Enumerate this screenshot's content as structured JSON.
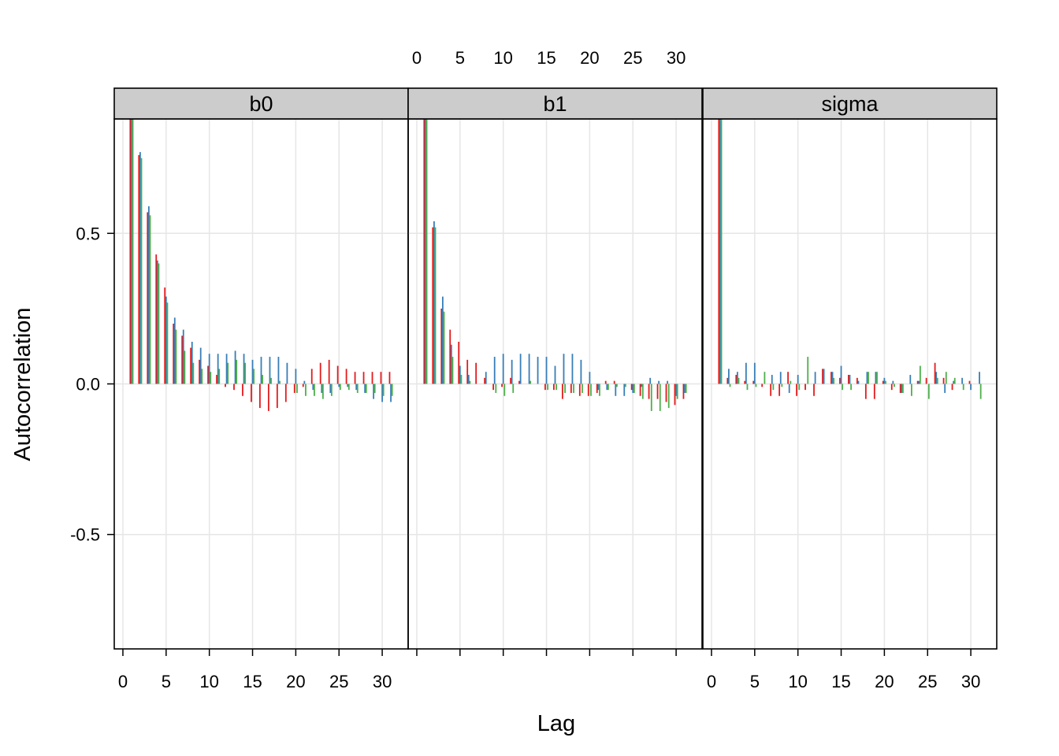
{
  "chart_data": {
    "type": "bar",
    "layout": "three panels side by side, shared y axis",
    "xlabel": "Lag",
    "ylabel": "Autocorrelation",
    "xlim": [
      -1,
      33
    ],
    "ylim": [
      -0.88,
      0.88
    ],
    "x_ticks": [
      0,
      5,
      10,
      15,
      20,
      25,
      30
    ],
    "y_ticks": [
      -0.5,
      0.0,
      0.5
    ],
    "y_tick_labels": [
      "-0.5",
      "0.0",
      "0.5"
    ],
    "grid": true,
    "lags": [
      1,
      2,
      3,
      4,
      5,
      6,
      7,
      8,
      9,
      10,
      11,
      12,
      13,
      14,
      15,
      16,
      17,
      18,
      19,
      20,
      21,
      22,
      23,
      24,
      25,
      26,
      27,
      28,
      29,
      30,
      31
    ],
    "series_colors": [
      "#e41a1c",
      "#377eb8",
      "#4daf4a"
    ],
    "panels": [
      {
        "title": "b0",
        "series": [
          {
            "values": [
              0.88,
              0.76,
              0.57,
              0.43,
              0.32,
              0.2,
              0.16,
              0.12,
              0.08,
              0.06,
              0.03,
              -0.01,
              -0.02,
              -0.04,
              -0.06,
              -0.08,
              -0.09,
              -0.08,
              -0.06,
              -0.03,
              -0.01,
              0.05,
              0.07,
              0.08,
              0.06,
              0.05,
              0.04,
              0.04,
              0.04,
              0.04,
              0.04
            ]
          },
          {
            "values": [
              0.88,
              0.77,
              0.59,
              0.41,
              0.29,
              0.22,
              0.18,
              0.14,
              0.12,
              0.1,
              0.1,
              0.1,
              0.11,
              0.1,
              0.08,
              0.09,
              0.09,
              0.09,
              0.07,
              0.05,
              0.01,
              -0.02,
              -0.03,
              -0.03,
              -0.01,
              -0.01,
              -0.02,
              -0.03,
              -0.05,
              -0.06,
              -0.06
            ]
          },
          {
            "values": [
              0.88,
              0.75,
              0.56,
              0.4,
              0.27,
              0.18,
              0.11,
              0.07,
              0.05,
              0.04,
              0.05,
              0.07,
              0.08,
              0.07,
              0.05,
              0.03,
              0.02,
              0.01,
              0.0,
              -0.03,
              -0.04,
              -0.04,
              -0.05,
              -0.04,
              -0.02,
              -0.02,
              -0.03,
              -0.03,
              -0.03,
              -0.04,
              -0.04
            ]
          }
        ]
      },
      {
        "title": "b1",
        "series": [
          {
            "values": [
              0.88,
              0.52,
              0.25,
              0.18,
              0.14,
              0.08,
              0.07,
              0.02,
              -0.02,
              -0.01,
              0.02,
              0.01,
              0.0,
              0.0,
              -0.02,
              -0.02,
              -0.05,
              -0.03,
              -0.04,
              -0.04,
              -0.03,
              0.01,
              0.01,
              0.0,
              -0.02,
              -0.04,
              -0.05,
              -0.05,
              -0.06,
              -0.07,
              -0.05
            ]
          },
          {
            "values": [
              0.88,
              0.54,
              0.29,
              0.13,
              0.06,
              0.03,
              0.0,
              0.04,
              0.09,
              0.1,
              0.08,
              0.1,
              0.1,
              0.09,
              0.09,
              0.06,
              0.1,
              0.1,
              0.08,
              0.04,
              -0.02,
              -0.02,
              -0.04,
              -0.04,
              -0.03,
              -0.01,
              0.02,
              0.01,
              0.01,
              -0.04,
              -0.03
            ]
          },
          {
            "values": [
              0.88,
              0.52,
              0.24,
              0.09,
              0.03,
              0.01,
              0.0,
              0.0,
              -0.03,
              -0.04,
              -0.03,
              0.0,
              0.01,
              0.0,
              -0.02,
              -0.02,
              -0.03,
              -0.03,
              -0.03,
              -0.04,
              -0.04,
              -0.02,
              -0.01,
              -0.01,
              -0.03,
              -0.05,
              -0.09,
              -0.09,
              -0.08,
              -0.05,
              -0.03
            ]
          }
        ]
      },
      {
        "title": "sigma",
        "series": [
          {
            "values": [
              0.88,
              0.02,
              0.03,
              0.01,
              0.01,
              -0.01,
              -0.04,
              -0.04,
              0.04,
              -0.04,
              -0.02,
              -0.04,
              0.05,
              0.04,
              0.02,
              0.03,
              0.02,
              -0.05,
              -0.05,
              0.01,
              -0.02,
              -0.03,
              0.0,
              0.01,
              0.02,
              0.07,
              0.02,
              -0.02,
              0.0,
              0.01,
              0.0
            ]
          },
          {
            "values": [
              0.88,
              0.05,
              0.04,
              0.07,
              0.07,
              0.0,
              0.03,
              0.04,
              -0.03,
              0.03,
              0.0,
              0.04,
              0.05,
              0.04,
              0.06,
              0.03,
              0.01,
              0.04,
              0.04,
              0.02,
              0.01,
              -0.03,
              0.03,
              0.01,
              0.0,
              0.04,
              -0.03,
              0.01,
              0.02,
              -0.02,
              0.04
            ]
          },
          {
            "values": [
              0.88,
              -0.01,
              0.02,
              -0.02,
              -0.01,
              0.04,
              -0.02,
              -0.01,
              0.01,
              -0.02,
              0.09,
              0.0,
              0.0,
              0.02,
              -0.02,
              -0.02,
              0.0,
              0.04,
              0.04,
              0.01,
              -0.01,
              -0.03,
              -0.04,
              0.06,
              -0.05,
              0.02,
              0.04,
              0.02,
              -0.02,
              0.0,
              -0.05
            ]
          }
        ]
      }
    ]
  }
}
